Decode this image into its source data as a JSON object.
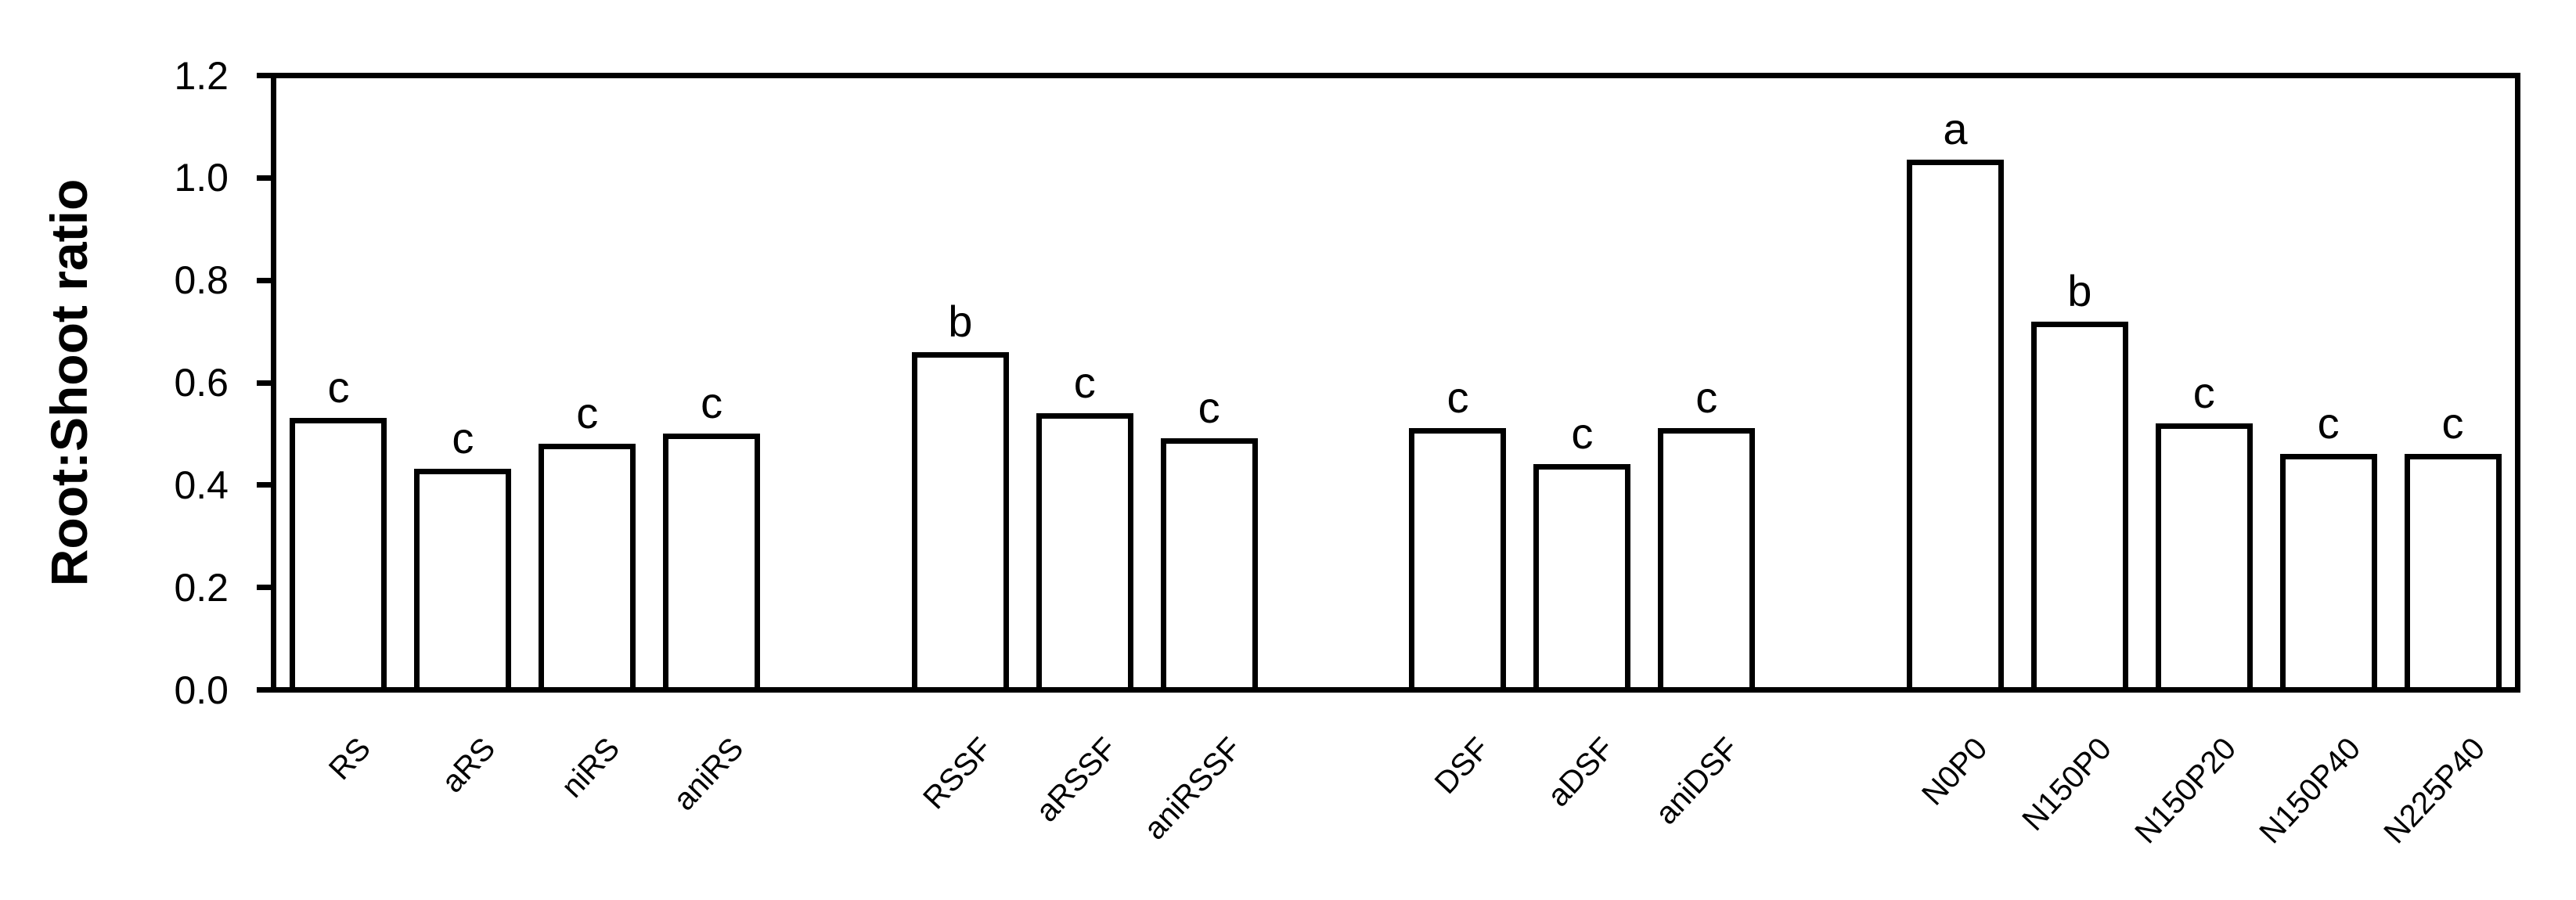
{
  "chart_data": {
    "type": "bar",
    "title": "",
    "xlabel": "",
    "ylabel": "Root:Shoot ratio",
    "ylim": [
      0.0,
      1.2
    ],
    "ytick_labels": [
      "0.0",
      "0.2",
      "0.4",
      "0.6",
      "0.8",
      "1.0",
      "1.2"
    ],
    "grid": false,
    "legend": null,
    "bar_fill": "#ffffff",
    "bar_border": "#000000",
    "text_color": "#000000",
    "categories": [
      "RS",
      "aRS",
      "niRS",
      "aniRS",
      "RSSF",
      "aRSSF",
      "aniRSSF",
      "DSF",
      "aDSF",
      "aniDSF",
      "N0P0",
      "N150P0",
      "N150P20",
      "N150P40",
      "N225P40"
    ],
    "values": [
      0.53,
      0.43,
      0.48,
      0.5,
      0.66,
      0.54,
      0.49,
      0.51,
      0.44,
      0.51,
      1.04,
      0.72,
      0.52,
      0.46,
      0.46
    ],
    "significance_letters": [
      "c",
      "c",
      "c",
      "c",
      "b",
      "c",
      "c",
      "c",
      "c",
      "c",
      "a",
      "b",
      "c",
      "c",
      "c"
    ],
    "groups": [
      {
        "bars": [
          {
            "label": "RS",
            "value": 0.53,
            "sig": "c"
          },
          {
            "label": "aRS",
            "value": 0.43,
            "sig": "c"
          },
          {
            "label": "niRS",
            "value": 0.48,
            "sig": "c"
          },
          {
            "label": "aniRS",
            "value": 0.5,
            "sig": "c"
          }
        ]
      },
      {
        "bars": [
          {
            "label": "RSSF",
            "value": 0.66,
            "sig": "b"
          },
          {
            "label": "aRSSF",
            "value": 0.54,
            "sig": "c"
          },
          {
            "label": "aniRSSF",
            "value": 0.49,
            "sig": "c"
          }
        ]
      },
      {
        "bars": [
          {
            "label": "DSF",
            "value": 0.51,
            "sig": "c"
          },
          {
            "label": "aDSF",
            "value": 0.44,
            "sig": "c"
          },
          {
            "label": "aniDSF",
            "value": 0.51,
            "sig": "c"
          }
        ]
      },
      {
        "bars": [
          {
            "label": "N0P0",
            "value": 1.04,
            "sig": "a"
          },
          {
            "label": "N150P0",
            "value": 0.72,
            "sig": "b"
          },
          {
            "label": "N150P20",
            "value": 0.52,
            "sig": "c"
          },
          {
            "label": "N150P40",
            "value": 0.46,
            "sig": "c"
          },
          {
            "label": "N225P40",
            "value": 0.46,
            "sig": "c"
          }
        ]
      }
    ]
  }
}
